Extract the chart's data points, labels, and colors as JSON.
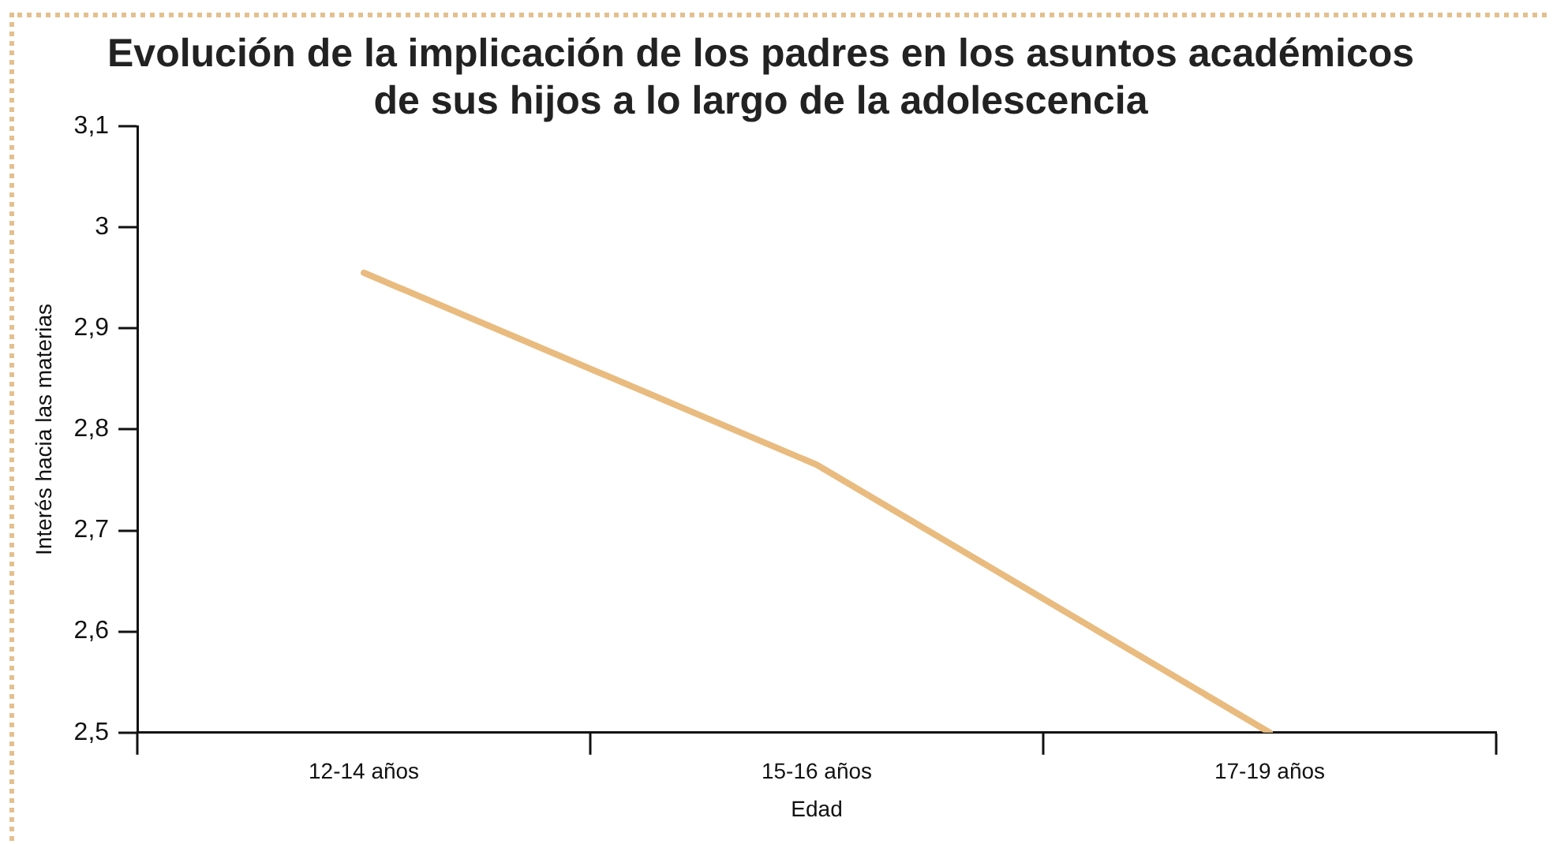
{
  "chart_data": {
    "type": "line",
    "title": [
      "Evolución de la implicación de los padres en los asuntos académicos",
      "de sus hijos a lo largo de la adolescencia"
    ],
    "xlabel": "Edad",
    "ylabel": "Interés hacia las materias",
    "categories": [
      "12-14 años",
      "15-16 años",
      "17-19 años"
    ],
    "series": [
      {
        "color": "#e9bb7f",
        "values": [
          2.955,
          2.765,
          2.5
        ]
      }
    ],
    "ylim": [
      2.5,
      3.1
    ],
    "yticks": [
      {
        "value": 2.5,
        "label": "2,5"
      },
      {
        "value": 2.6,
        "label": "2,6"
      },
      {
        "value": 2.7,
        "label": "2,7"
      },
      {
        "value": 2.8,
        "label": "2,8"
      },
      {
        "value": 2.9,
        "label": "2,9"
      },
      3,
      {
        "value": 3.1,
        "label": "3,1"
      }
    ],
    "grid": false,
    "legend": false,
    "marker": "none",
    "line_style": "solid"
  }
}
